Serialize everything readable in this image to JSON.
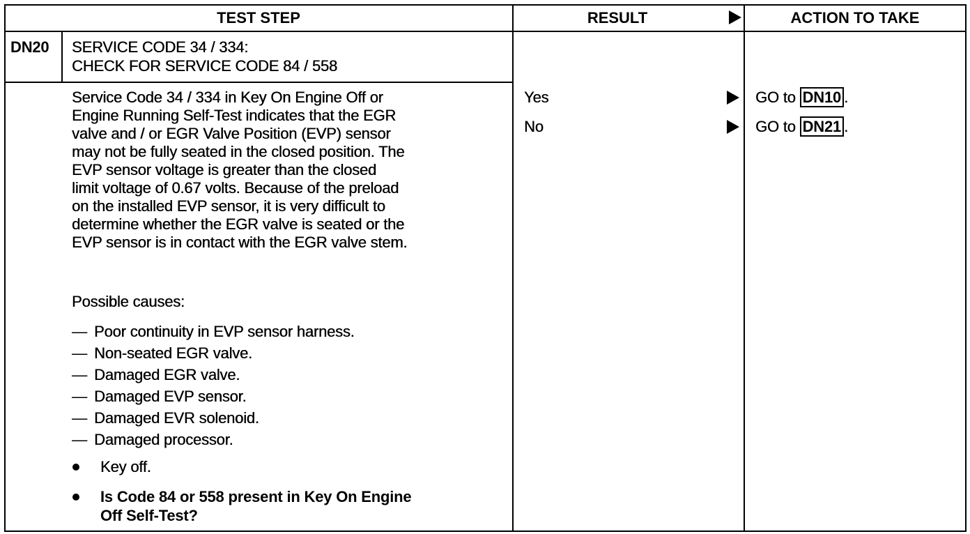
{
  "header": {
    "test_step": "TEST STEP",
    "result": "RESULT",
    "action": "ACTION TO TAKE"
  },
  "step": {
    "id": "DN20",
    "title_line1": "SERVICE CODE 34 / 334:",
    "title_line2": "CHECK FOR SERVICE CODE 84 / 558",
    "description_lines": [
      "Service Code 34 / 334 in Key On Engine Off or",
      "Engine Running Self-Test indicates that the EGR",
      "valve and / or EGR Valve Position (EVP) sensor",
      "may not be fully seated in the closed position. The",
      "EVP sensor voltage is greater than the closed",
      "limit voltage of 0.67 volts. Because of the preload",
      "on the installed EVP sensor, it is very difficult to",
      "determine whether the EGR valve is seated or the",
      "EVP sensor is in contact with the EGR valve stem."
    ],
    "causes_heading": "Possible causes:",
    "causes": [
      "Poor continuity in EVP sensor harness.",
      "Non-seated EGR valve.",
      "Damaged EGR valve.",
      "Damaged EVP sensor.",
      "Damaged EVR solenoid.",
      "Damaged processor."
    ],
    "dash": "—",
    "bullets": [
      "Key off.",
      "Is Code 84 or 558 present in Key On Engine",
      "Off Self-Test?"
    ]
  },
  "results": [
    {
      "label": "Yes",
      "action_prefix": "GO to",
      "ref": "DN10",
      "suffix": "."
    },
    {
      "label": "No",
      "action_prefix": "GO to",
      "ref": "DN21",
      "suffix": "."
    }
  ]
}
